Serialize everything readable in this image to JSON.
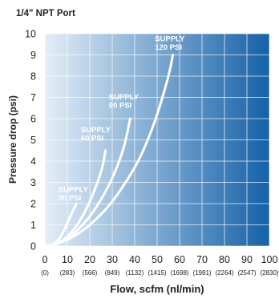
{
  "chart_data": {
    "type": "line",
    "title": "1/4\" NPT Port",
    "xlabel": "Flow, scfm (nl/min)",
    "ylabel": "Pressure drop (psi)",
    "xlim": [
      0,
      100
    ],
    "ylim": [
      0,
      10
    ],
    "x_ticks": [
      "0",
      "10",
      "20",
      "30",
      "40",
      "50",
      "60",
      "70",
      "80",
      "90",
      "100"
    ],
    "x_ticks_secondary": [
      "(0)",
      "(283)",
      "(566)",
      "(849)",
      "(1132)",
      "(1415)",
      "(1698)",
      "(1981)",
      "(2264)",
      "(2547)",
      "(2830)"
    ],
    "y_ticks": [
      "0",
      "1",
      "2",
      "3",
      "4",
      "5",
      "6",
      "7",
      "8",
      "9",
      "10"
    ],
    "grid": true,
    "legend": "none (curves labeled inline)",
    "series": [
      {
        "name": "SUPPLY 30 PSI",
        "label_lines": [
          "SUPPLY",
          "30 PSI"
        ],
        "x": [
          0,
          3,
          6,
          9,
          12,
          14
        ],
        "y": [
          0,
          0.05,
          0.3,
          0.85,
          1.55,
          2.0
        ]
      },
      {
        "name": "SUPPLY 60 PSI",
        "label_lines": [
          "SUPPLY",
          "60 PSI"
        ],
        "x": [
          0,
          5,
          10,
          15,
          20,
          25,
          27
        ],
        "y": [
          0,
          0.1,
          0.45,
          1.1,
          2.1,
          3.5,
          4.5
        ]
      },
      {
        "name": "SUPPLY 90 PSI",
        "label_lines": [
          "SUPPLY",
          "90 PSI"
        ],
        "x": [
          0,
          5,
          10,
          15,
          20,
          25,
          30,
          35,
          38
        ],
        "y": [
          0,
          0.1,
          0.35,
          0.8,
          1.4,
          2.2,
          3.2,
          4.6,
          6.0
        ]
      },
      {
        "name": "SUPPLY 120 PSI",
        "label_lines": [
          "SUPPLY",
          "120 PSI"
        ],
        "x": [
          0,
          10,
          20,
          30,
          40,
          45,
          50,
          55,
          57
        ],
        "y": [
          0,
          0.3,
          1.0,
          2.1,
          3.7,
          4.8,
          6.2,
          8.0,
          9.0
        ]
      }
    ],
    "colors": {
      "gradient_start": "#e4eef8",
      "gradient_end": "#1561a8",
      "grid": "#ffffff",
      "curve": "#ffffff",
      "text": "#222222",
      "curve_label": "#ffffff"
    }
  }
}
